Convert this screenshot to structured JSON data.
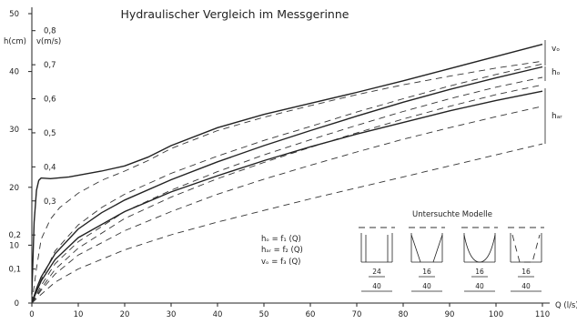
{
  "chart_data": {
    "type": "line",
    "title": "Hydraulischer Vergleich im Messgerinne",
    "xlabel": "Q (l/s)",
    "xlim": [
      0,
      110
    ],
    "x_ticks": [
      0,
      10,
      20,
      30,
      40,
      50,
      60,
      70,
      80,
      90,
      100,
      110
    ],
    "y_axes": [
      {
        "label": "h(cm)",
        "lim": [
          0,
          50
        ],
        "ticks": [
          "0",
          "10",
          "20",
          "30",
          "40",
          "50"
        ]
      },
      {
        "label": "v(m/s)",
        "lim": [
          0,
          0.85
        ],
        "ticks": [
          "0,1",
          "0,2",
          "0,3",
          "0,4",
          "0,5",
          "0,6",
          "0,7",
          "0,8"
        ]
      }
    ],
    "groups": [
      {
        "name": "vₒ",
        "series": [
          {
            "style": "solid",
            "points": [
              [
                0,
                1.5
              ],
              [
                0.5,
                14
              ],
              [
                1,
                19.5
              ],
              [
                1.5,
                21.2
              ],
              [
                2,
                21.6
              ],
              [
                4,
                21.5
              ],
              [
                8,
                21.8
              ],
              [
                15,
                22.8
              ],
              [
                20,
                23.7
              ],
              [
                25,
                25.2
              ],
              [
                30,
                27.2
              ],
              [
                40,
                30.3
              ],
              [
                50,
                32.6
              ],
              [
                60,
                34.5
              ],
              [
                70,
                36.4
              ],
              [
                80,
                38.4
              ],
              [
                90,
                40.5
              ],
              [
                100,
                42.6
              ],
              [
                110,
                44.7
              ]
            ]
          },
          {
            "style": "dashed",
            "points": [
              [
                0,
                0
              ],
              [
                1,
                6
              ],
              [
                2,
                11
              ],
              [
                4,
                14.5
              ],
              [
                6,
                16.5
              ],
              [
                10,
                19
              ],
              [
                15,
                21.2
              ],
              [
                20,
                22.8
              ],
              [
                25,
                24.6
              ],
              [
                30,
                26.7
              ],
              [
                40,
                29.8
              ],
              [
                50,
                32.1
              ],
              [
                60,
                34.1
              ],
              [
                70,
                36
              ],
              [
                80,
                37.7
              ],
              [
                90,
                39.2
              ],
              [
                100,
                40.6
              ],
              [
                110,
                41.8
              ]
            ]
          },
          {
            "style": "dashed",
            "points": [
              [
                0,
                0
              ],
              [
                2,
                4
              ],
              [
                5,
                9
              ],
              [
                10,
                13.5
              ],
              [
                15,
                16.5
              ],
              [
                20,
                18.8
              ],
              [
                30,
                22.4
              ],
              [
                40,
                25.4
              ],
              [
                50,
                28.1
              ],
              [
                60,
                30.5
              ],
              [
                70,
                33
              ],
              [
                80,
                35.3
              ],
              [
                90,
                37.5
              ],
              [
                100,
                39.5
              ],
              [
                110,
                41.3
              ]
            ]
          }
        ]
      },
      {
        "name": "hₒ",
        "series": [
          {
            "style": "solid",
            "points": [
              [
                0,
                0
              ],
              [
                1,
                2.5
              ],
              [
                2,
                4.5
              ],
              [
                5,
                8.5
              ],
              [
                10,
                12.8
              ],
              [
                15,
                15.6
              ],
              [
                20,
                17.8
              ],
              [
                30,
                21.3
              ],
              [
                40,
                24.4
              ],
              [
                50,
                27.2
              ],
              [
                60,
                29.8
              ],
              [
                70,
                32.3
              ],
              [
                80,
                34.7
              ],
              [
                90,
                36.9
              ],
              [
                100,
                38.9
              ],
              [
                110,
                40.8
              ]
            ]
          },
          {
            "style": "dashed",
            "points": [
              [
                0,
                0
              ],
              [
                2,
                3
              ],
              [
                5,
                6.8
              ],
              [
                10,
                10.6
              ],
              [
                20,
                15.8
              ],
              [
                30,
                19.5
              ],
              [
                40,
                22.7
              ],
              [
                50,
                25.6
              ],
              [
                60,
                28.2
              ],
              [
                70,
                30.7
              ],
              [
                80,
                33.1
              ],
              [
                90,
                35.3
              ],
              [
                100,
                37.3
              ],
              [
                110,
                39
              ]
            ]
          },
          {
            "style": "dashed",
            "points": [
              [
                0,
                0
              ],
              [
                2,
                2.5
              ],
              [
                5,
                5.8
              ],
              [
                10,
                9.5
              ],
              [
                20,
                14.6
              ],
              [
                30,
                18.3
              ],
              [
                40,
                21.5
              ],
              [
                50,
                24.3
              ],
              [
                60,
                26.9
              ],
              [
                70,
                29.4
              ],
              [
                80,
                31.8
              ],
              [
                90,
                34
              ],
              [
                100,
                36
              ],
              [
                110,
                37.7
              ]
            ]
          }
        ]
      },
      {
        "name": "hₐᵣ",
        "series": [
          {
            "style": "solid",
            "points": [
              [
                0,
                0
              ],
              [
                1,
                2
              ],
              [
                2,
                3.8
              ],
              [
                5,
                7.5
              ],
              [
                10,
                11.3
              ],
              [
                20,
                15.8
              ],
              [
                30,
                19.2
              ],
              [
                40,
                22
              ],
              [
                50,
                24.6
              ],
              [
                60,
                27
              ],
              [
                70,
                29.2
              ],
              [
                80,
                31.2
              ],
              [
                90,
                33.2
              ],
              [
                100,
                35
              ],
              [
                110,
                36.6
              ]
            ]
          },
          {
            "style": "dashed",
            "points": [
              [
                0,
                0
              ],
              [
                2,
                2.2
              ],
              [
                5,
                5
              ],
              [
                10,
                8.3
              ],
              [
                20,
                12.5
              ],
              [
                30,
                15.8
              ],
              [
                40,
                18.8
              ],
              [
                50,
                21.4
              ],
              [
                60,
                23.8
              ],
              [
                70,
                26.1
              ],
              [
                80,
                28.3
              ],
              [
                90,
                30.3
              ],
              [
                100,
                32.2
              ],
              [
                110,
                34
              ]
            ]
          },
          {
            "style": "dashed",
            "points": [
              [
                0,
                0
              ],
              [
                2,
                1.5
              ],
              [
                5,
                3.6
              ],
              [
                10,
                5.9
              ],
              [
                20,
                9.2
              ],
              [
                30,
                11.8
              ],
              [
                40,
                14
              ],
              [
                50,
                16
              ],
              [
                60,
                18
              ],
              [
                70,
                19.9
              ],
              [
                80,
                21.8
              ],
              [
                90,
                23.7
              ],
              [
                100,
                25.6
              ],
              [
                110,
                27.5
              ]
            ]
          }
        ]
      }
    ],
    "legend": {
      "position": "middle-right",
      "lines": [
        "hₒ = f₁ (Q)",
        "hₐᵣ = f₂ (Q)",
        "vₒ = f₃ (Q)"
      ]
    },
    "inset": {
      "title": "Untersuchte Modelle",
      "models": [
        {
          "inner": "24",
          "outer": "40"
        },
        {
          "inner": "16",
          "outer": "40"
        },
        {
          "inner": "16",
          "outer": "40"
        },
        {
          "inner": "16",
          "outer": "40"
        }
      ]
    }
  }
}
